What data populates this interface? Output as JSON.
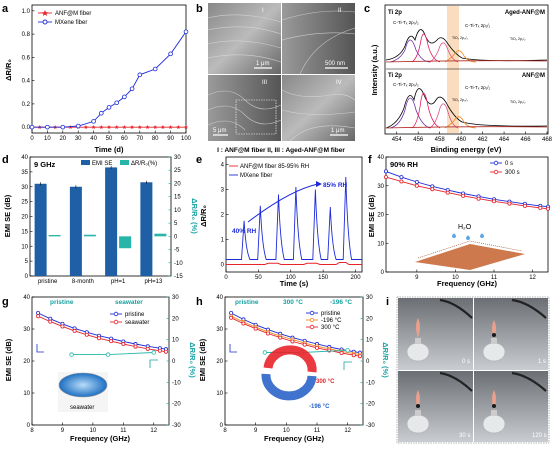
{
  "panel_letters": [
    "a",
    "b",
    "c",
    "d",
    "e",
    "f",
    "g",
    "h",
    "i"
  ],
  "colors": {
    "red": "#e8232a",
    "blue": "#1e2bd8",
    "teal": "#26b5a8",
    "darkblue": "#1f5fa6",
    "orange": "#f28a1c",
    "tealtext": "#17a1a1"
  },
  "panel_a": {
    "xlabel": "Time (d)",
    "ylabel": "ΔR/R₀",
    "xticks": [
      "0",
      "10",
      "20",
      "30",
      "40",
      "50",
      "60",
      "70",
      "80",
      "90",
      "100"
    ],
    "yticks": [
      "0.0",
      "0.2",
      "0.4",
      "0.6",
      "0.8",
      "1.0"
    ],
    "legend": [
      "ANF@M fiber",
      "MXene fiber"
    ],
    "chart_data": {
      "type": "line",
      "xlim": [
        0,
        100
      ],
      "ylim": [
        -0.05,
        1.05
      ],
      "series": [
        {
          "name": "ANF@M fiber",
          "x": [
            0,
            5,
            10,
            15,
            20,
            25,
            30,
            35,
            40,
            45,
            50,
            55,
            60,
            65,
            70,
            75,
            80,
            85,
            90,
            95,
            100
          ],
          "y": [
            0,
            0,
            0,
            0,
            0,
            0,
            0,
            0,
            0,
            0,
            0,
            0,
            0,
            0,
            0,
            0,
            0,
            0,
            0,
            0,
            0
          ]
        },
        {
          "name": "MXene fiber",
          "x": [
            0,
            10,
            20,
            30,
            40,
            45,
            50,
            55,
            60,
            65,
            70,
            80,
            90,
            100
          ],
          "y": [
            0,
            0,
            0,
            0.01,
            0.05,
            0.12,
            0.17,
            0.21,
            0.26,
            0.33,
            0.45,
            0.5,
            0.63,
            0.82
          ]
        }
      ]
    }
  },
  "panel_b": {
    "labels": [
      "I",
      "II",
      "III",
      "IV"
    ],
    "scales": [
      "1 μm",
      "500 nm",
      "5 μm",
      "1 μm"
    ],
    "caption": "I : ANF@M fiber     II, III : Aged-ANF@M fiber"
  },
  "panel_c": {
    "title": "Ti 2p",
    "xlabel": "Binding energy (eV)",
    "ylabel": "Intensity (a.u.)",
    "xticks": [
      "454",
      "456",
      "458",
      "460",
      "462",
      "464",
      "466",
      "468"
    ],
    "top_label": "Aged-ANF@M",
    "bottom_label": "ANF@M",
    "peak_labels": [
      "C-Ti-Tₓ 2p₃/₂",
      "C-Ti-Tₓ 2p₁/₂",
      "TiO₂ 2p₃/₂",
      "TiO₂ 2p₁/₂"
    ]
  },
  "panel_d": {
    "title": "9 GHz",
    "ylabel": "EMI SE (dB)",
    "ylabel2": "ΔR/R₀ (%)",
    "legend": [
      "EMI SE",
      "ΔR/R₀(%)"
    ],
    "yticks": [
      "0",
      "5",
      "10",
      "15",
      "20",
      "25",
      "30",
      "35",
      "40"
    ],
    "y2ticks": [
      "-15",
      "-10",
      "-5",
      "0",
      "5",
      "10",
      "15",
      "20",
      "25",
      "30"
    ],
    "chart_data": {
      "type": "bar",
      "categories": [
        "pristine",
        "8-month",
        "pH=1",
        "pH=13"
      ],
      "ylim": [
        0,
        40
      ],
      "y2lim": [
        -15,
        30
      ],
      "series": [
        {
          "name": "EMI SE",
          "values": [
            31,
            30,
            36.5,
            31.5
          ]
        },
        {
          "name": "ΔR/R₀(%)",
          "values": [
            0.5,
            0.6,
            -4.5,
            1
          ]
        }
      ]
    }
  },
  "panel_e": {
    "xlabel": "Time (s)",
    "ylabel": "ΔR/R₀",
    "xticks": [
      "0",
      "50",
      "100",
      "150",
      "200"
    ],
    "yticks": [
      "0",
      "1",
      "2",
      "3",
      "4"
    ],
    "legend": [
      "ANF@M fiber 85-95% RH",
      "MXene fiber"
    ],
    "ann_low": "40% RH",
    "ann_high": "85% RH",
    "chart_data": {
      "type": "line",
      "xlim": [
        0,
        210
      ],
      "ylim": [
        -0.3,
        4.3
      ],
      "series": [
        {
          "name": "MXene fiber",
          "pulses": [
            [
              25,
              1.75
            ],
            [
              50,
              2.35
            ],
            [
              78,
              2.8
            ],
            [
              105,
              3.1
            ],
            [
              135,
              3.0
            ],
            [
              158,
              2.3
            ],
            [
              182,
              3.5
            ]
          ]
        },
        {
          "name": "ANF@M fiber 85-95% RH",
          "pulses": [
            [
              75,
              0.05
            ],
            [
              135,
              0.05
            ],
            [
              180,
              0.08
            ]
          ]
        }
      ]
    }
  },
  "panel_f": {
    "title": "90% RH",
    "xlabel": "Frequency (GHz)",
    "ylabel": "EMI SE (dB)",
    "xticks": [
      "9",
      "10",
      "11",
      "12"
    ],
    "yticks": [
      "0",
      "10",
      "20",
      "30",
      "40"
    ],
    "legend": [
      "0 s",
      "300 s"
    ],
    "inset": "H₂O",
    "chart_data": {
      "type": "line",
      "xlim": [
        8.2,
        12.4
      ],
      "ylim": [
        0,
        40
      ],
      "series": [
        {
          "name": "0 s",
          "x": [
            8.2,
            8.6,
            9.0,
            9.4,
            9.8,
            10.2,
            10.6,
            11.0,
            11.4,
            11.8,
            12.2,
            12.4
          ],
          "y": [
            35,
            33,
            31.3,
            29.8,
            28.5,
            27.3,
            26.3,
            25.3,
            24.5,
            23.7,
            23,
            22.7
          ]
        },
        {
          "name": "300 s",
          "x": [
            8.2,
            8.6,
            9.0,
            9.4,
            9.8,
            10.2,
            10.6,
            11.0,
            11.4,
            11.8,
            12.2,
            12.4
          ],
          "y": [
            33,
            31.5,
            30,
            28.8,
            27.6,
            26.5,
            25.5,
            24.6,
            23.8,
            23.0,
            22.3,
            22
          ]
        }
      ]
    }
  },
  "panel_g": {
    "ann1": "pristine",
    "ann2": "seawater",
    "xlabel": "Frequency (GHz)",
    "ylabel": "EMI SE (dB)",
    "ylabel2": "ΔR/R₀ (%)",
    "xticks": [
      "8",
      "9",
      "10",
      "11",
      "12"
    ],
    "yticks": [
      "0",
      "10",
      "20",
      "30",
      "40"
    ],
    "y2ticks": [
      "-30",
      "-20",
      "-10",
      "0",
      "10",
      "20",
      "30"
    ],
    "legend": [
      "pristine",
      "seawater"
    ],
    "inset": "seawater",
    "chart_data": {
      "type": "line",
      "xlim": [
        8,
        12.5
      ],
      "ylim": [
        0,
        40
      ],
      "series": [
        {
          "name": "pristine",
          "x": [
            8.2,
            8.6,
            9.0,
            9.4,
            9.8,
            10.2,
            10.6,
            11.0,
            11.4,
            11.8,
            12.2,
            12.4
          ],
          "y": [
            35,
            33.2,
            31.6,
            30.2,
            29,
            27.9,
            27,
            26.1,
            25.3,
            24.6,
            24,
            23.7
          ]
        },
        {
          "name": "seawater",
          "x": [
            8.2,
            8.6,
            9.0,
            9.4,
            9.8,
            10.2,
            10.6,
            11.0,
            11.4,
            11.8,
            12.2,
            12.4
          ],
          "y": [
            34,
            32.3,
            30.8,
            29.4,
            28.2,
            27.1,
            26.2,
            25.3,
            24.5,
            23.8,
            23.2,
            22.9
          ]
        },
        {
          "name": "ΔR/R₀",
          "x": [
            9.3,
            10.5,
            12.0
          ],
          "y": [
            3,
            3,
            4
          ]
        }
      ]
    }
  },
  "panel_h": {
    "ann1": "pristine",
    "ann2": "300 °C",
    "ann3": "-196 °C",
    "xlabel": "Frequency (GHz)",
    "ylabel": "EMI SE (dB)",
    "ylabel2": "ΔR/R₀ (%)",
    "xticks": [
      "8",
      "9",
      "10",
      "11",
      "12"
    ],
    "yticks": [
      "0",
      "10",
      "20",
      "30",
      "40"
    ],
    "y2ticks": [
      "-30",
      "-20",
      "-10",
      "0",
      "10",
      "20",
      "30"
    ],
    "legend": [
      "pristine",
      "-196 °C",
      "300 °C"
    ],
    "inset_hot": "300 °C",
    "inset_cold": "-196 °C",
    "chart_data": {
      "type": "line",
      "xlim": [
        8,
        12.5
      ],
      "ylim": [
        0,
        40
      ],
      "series": [
        {
          "name": "pristine",
          "x": [
            8.2,
            8.6,
            9.0,
            9.4,
            9.8,
            10.2,
            10.6,
            11.0,
            11.4,
            11.8,
            12.2,
            12.4
          ],
          "y": [
            35,
            33,
            31.3,
            29.8,
            28.5,
            27.3,
            26.3,
            25.3,
            24.4,
            23.6,
            22.9,
            22.6
          ]
        },
        {
          "name": "-196 °C",
          "x": [
            8.2,
            8.6,
            9.0,
            9.4,
            9.8,
            10.2,
            10.6,
            11.0,
            11.4,
            11.8,
            12.2,
            12.4
          ],
          "y": [
            34,
            32.2,
            30.6,
            29.1,
            27.8,
            26.7,
            25.6,
            24.6,
            23.8,
            23,
            22.3,
            22
          ]
        },
        {
          "name": "300 °C",
          "x": [
            8.2,
            8.6,
            9.0,
            9.4,
            9.8,
            10.2,
            10.6,
            11.0,
            11.4,
            11.8,
            12.2,
            12.4
          ],
          "y": [
            33.5,
            31.7,
            30.1,
            28.6,
            27.3,
            26.1,
            25.1,
            24.1,
            23.3,
            22.5,
            21.8,
            21.5
          ]
        },
        {
          "name": "ΔR/R₀",
          "x": [
            9.3,
            10.5,
            12.0
          ],
          "y": [
            4,
            4,
            5
          ]
        }
      ]
    }
  },
  "panel_i": {
    "times": [
      "0 s",
      "1 s",
      "30 s",
      "120 s"
    ]
  }
}
